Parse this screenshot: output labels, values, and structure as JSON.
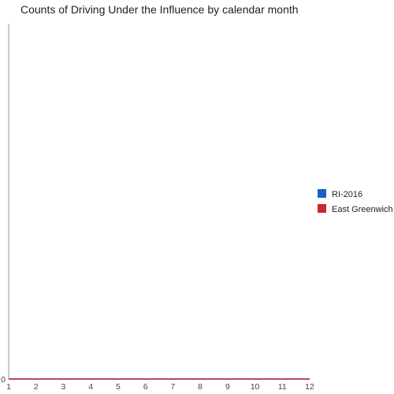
{
  "chart_data": {
    "type": "line",
    "title": "Counts of Driving Under the Influence by calendar month",
    "xlabel": "",
    "ylabel": "",
    "x": [
      1,
      2,
      3,
      4,
      5,
      6,
      7,
      8,
      9,
      10,
      11,
      12
    ],
    "xlim": [
      1,
      12
    ],
    "y_ticks": [
      "0"
    ],
    "ylim": [
      0,
      1
    ],
    "grid": false,
    "legend_position": "right",
    "series": [
      {
        "name": "RI-2016",
        "color": "#1a5fc8",
        "values": [
          0,
          0,
          0,
          0,
          0,
          0,
          0,
          0,
          0,
          0,
          0,
          0
        ]
      },
      {
        "name": "East Greenwich",
        "color": "#c8282d",
        "values": [
          0,
          0,
          0,
          0,
          0,
          0,
          0,
          0,
          0,
          0,
          0,
          0
        ]
      }
    ]
  }
}
